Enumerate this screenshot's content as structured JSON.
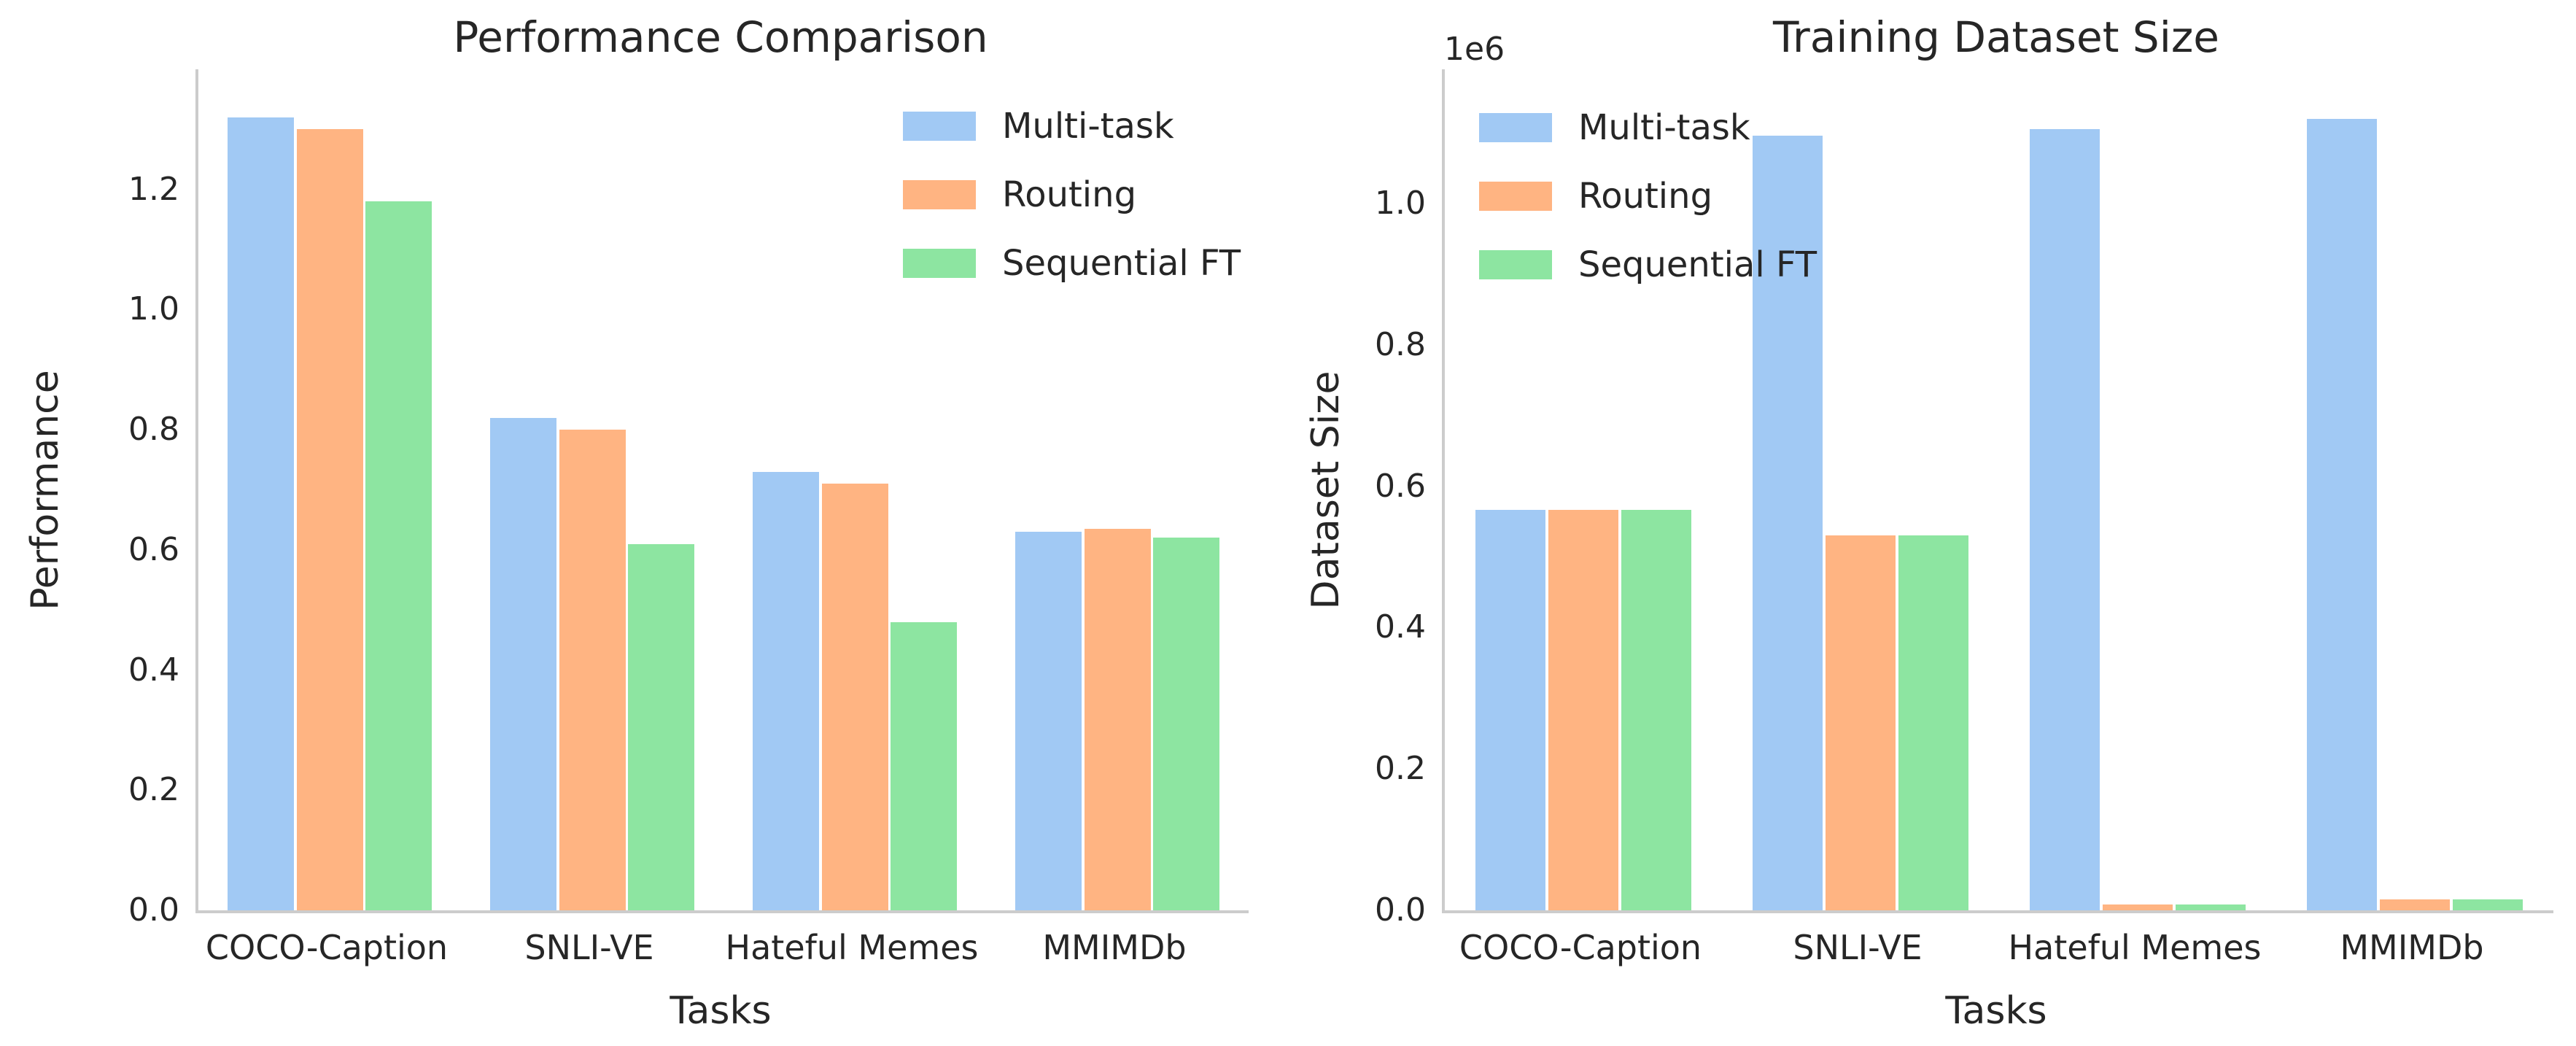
{
  "style": {
    "background": "#ffffff",
    "text_color": "#262626",
    "spine_color": "#cccccc"
  },
  "chart_data": [
    {
      "type": "bar",
      "title": "Performance Comparison",
      "xlabel": "Tasks",
      "ylabel": "Performance",
      "categories": [
        "COCO-Caption",
        "SNLI-VE",
        "Hateful Memes",
        "MMIMDb"
      ],
      "series": [
        {
          "name": "Multi-task",
          "color": "#a1c9f4",
          "values": [
            1.32,
            0.82,
            0.73,
            0.63
          ]
        },
        {
          "name": "Routing",
          "color": "#ffb482",
          "values": [
            1.3,
            0.8,
            0.71,
            0.635
          ]
        },
        {
          "name": "Sequential FT",
          "color": "#8de5a1",
          "values": [
            1.18,
            0.61,
            0.48,
            0.62
          ]
        }
      ],
      "ylim": [
        0,
        1.4
      ],
      "yticks": [
        {
          "value": 0.0,
          "label": "0.0"
        },
        {
          "value": 0.2,
          "label": "0.2"
        },
        {
          "value": 0.4,
          "label": "0.4"
        },
        {
          "value": 0.6,
          "label": "0.6"
        },
        {
          "value": 0.8,
          "label": "0.8"
        },
        {
          "value": 1.0,
          "label": "1.0"
        },
        {
          "value": 1.2,
          "label": "1.2"
        }
      ],
      "legend_position": "upper right",
      "grid": false
    },
    {
      "type": "bar",
      "title": "Training Dataset Size",
      "xlabel": "Tasks",
      "ylabel": "Dataset Size",
      "offset_text": "1e6",
      "categories": [
        "COCO-Caption",
        "SNLI-VE",
        "Hateful Memes",
        "MMIMDb"
      ],
      "series": [
        {
          "name": "Multi-task",
          "color": "#a1c9f4",
          "values": [
            567000,
            1096000,
            1105000,
            1120000
          ]
        },
        {
          "name": "Routing",
          "color": "#ffb482",
          "values": [
            567000,
            530000,
            8500,
            15500
          ]
        },
        {
          "name": "Sequential FT",
          "color": "#8de5a1",
          "values": [
            567000,
            530000,
            8500,
            15500
          ]
        }
      ],
      "ylim": [
        0,
        1190000
      ],
      "yticks": [
        {
          "value": 0,
          "label": "0.0"
        },
        {
          "value": 200000,
          "label": "0.2"
        },
        {
          "value": 400000,
          "label": "0.4"
        },
        {
          "value": 600000,
          "label": "0.6"
        },
        {
          "value": 800000,
          "label": "0.8"
        },
        {
          "value": 1000000,
          "label": "1.0"
        }
      ],
      "legend_position": "upper left",
      "grid": false
    }
  ]
}
